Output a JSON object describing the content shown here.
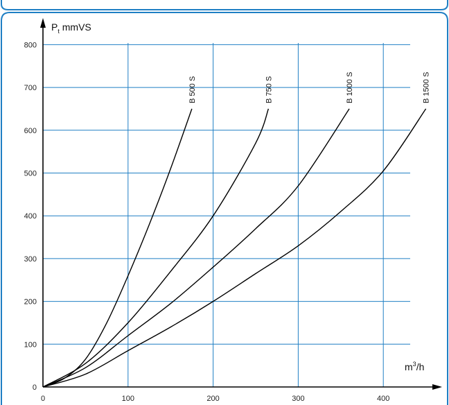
{
  "colors": {
    "frame": "#1f7fc4",
    "grid": "#1f7fc4",
    "axis": "#000000",
    "curve": "#000000"
  },
  "chart_data": {
    "type": "line",
    "y_title_main": "P",
    "y_title_sub": "t",
    "y_title_rest": " mmVS",
    "x_unit_main": "m",
    "x_unit_sup": "3",
    "x_unit_rest": "/h",
    "xlim": [
      0,
      430
    ],
    "ylim": [
      0,
      800
    ],
    "x_ticks": [
      0,
      100,
      200,
      300,
      400
    ],
    "y_ticks": [
      0,
      100,
      200,
      300,
      400,
      500,
      600,
      700,
      800
    ],
    "grid": true,
    "series": [
      {
        "name": "B 500 S",
        "x": [
          0,
          25,
          50,
          75,
          100,
          125,
          150,
          175
        ],
        "y": [
          0,
          20,
          65,
          150,
          260,
          380,
          510,
          650
        ]
      },
      {
        "name": "B 750 S",
        "x": [
          0,
          50,
          100,
          150,
          200,
          250,
          265
        ],
        "y": [
          0,
          55,
          150,
          270,
          400,
          570,
          650
        ]
      },
      {
        "name": "B 1000 S",
        "x": [
          0,
          50,
          100,
          150,
          200,
          250,
          300,
          360
        ],
        "y": [
          0,
          45,
          120,
          195,
          280,
          370,
          470,
          650
        ]
      },
      {
        "name": "B 1500 S",
        "x": [
          0,
          50,
          100,
          150,
          200,
          250,
          300,
          350,
          400,
          450
        ],
        "y": [
          0,
          30,
          85,
          140,
          200,
          265,
          330,
          410,
          505,
          650
        ]
      }
    ]
  }
}
